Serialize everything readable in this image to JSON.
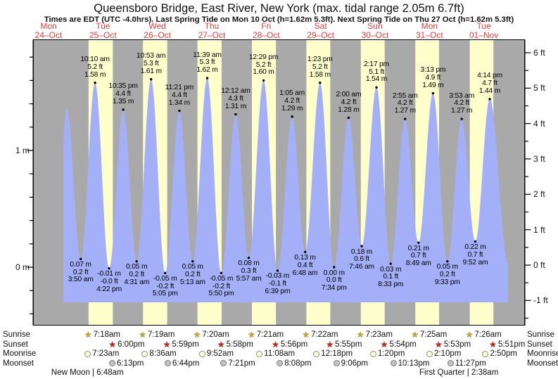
{
  "chart_data": {
    "type": "area",
    "title": "Queensboro Bridge, East River, New York (max. tidal range 2.05m 6.7ft)",
    "subtitle": "Times are EDT (UTC -4.0hrs). Last Spring Tide on Mon 10 Oct (h=1.62m 5.3ft). Next Spring Tide on Thu 27 Oct (h=1.62m 5.3ft)",
    "days": [
      {
        "dow": "Mon",
        "date": "24–Oct"
      },
      {
        "dow": "Tue",
        "date": "25–Oct"
      },
      {
        "dow": "Wed",
        "date": "26–Oct"
      },
      {
        "dow": "Thu",
        "date": "27–Oct"
      },
      {
        "dow": "Fri",
        "date": "28–Oct"
      },
      {
        "dow": "Sat",
        "date": "29–Oct"
      },
      {
        "dow": "Sun",
        "date": "30–Oct"
      },
      {
        "dow": "Mon",
        "date": "31–Oct"
      },
      {
        "dow": "Tue",
        "date": "01–Nov"
      }
    ],
    "y_axis_left": [
      {
        "value_m": 1,
        "label": "1 m"
      },
      {
        "value_m": 0,
        "label": "0 m"
      }
    ],
    "y_axis_right": [
      {
        "value_ft": 6,
        "label": "6 ft"
      },
      {
        "value_ft": 5,
        "label": "5 ft"
      },
      {
        "value_ft": 4,
        "label": "4 ft"
      },
      {
        "value_ft": 3,
        "label": "3 ft"
      },
      {
        "value_ft": 2,
        "label": "2 ft"
      },
      {
        "value_ft": 1,
        "label": "1 ft"
      },
      {
        "value_ft": 0,
        "label": "0 ft"
      },
      {
        "value_ft": -1,
        "label": "-1 ft"
      }
    ],
    "extremes": [
      {
        "day": 1,
        "time": "3:50 am",
        "ft": "0.2 ft",
        "m": "0.07 m",
        "kind": "low"
      },
      {
        "day": 1,
        "time": "10:10 am",
        "ft": "5.2 ft",
        "m": "1.58 m",
        "kind": "high"
      },
      {
        "day": 1,
        "time": "4:22 pm",
        "ft": "-0.0 ft",
        "m": "-0.01 m",
        "kind": "low"
      },
      {
        "day": 1,
        "time": "10:35 pm",
        "ft": "4.4 ft",
        "m": "1.35 m",
        "kind": "high"
      },
      {
        "day": 2,
        "time": "4:31 am",
        "ft": "0.2 ft",
        "m": "0.05 m",
        "kind": "low"
      },
      {
        "day": 2,
        "time": "10:53 am",
        "ft": "5.3 ft",
        "m": "1.61 m",
        "kind": "high"
      },
      {
        "day": 2,
        "time": "5:05 pm",
        "ft": "-0.2 ft",
        "m": "-0.05 m",
        "kind": "low"
      },
      {
        "day": 2,
        "time": "11:21 pm",
        "ft": "4.4 ft",
        "m": "1.34 m",
        "kind": "high"
      },
      {
        "day": 3,
        "time": "5:13 am",
        "ft": "0.2 ft",
        "m": "0.05 m",
        "kind": "low"
      },
      {
        "day": 3,
        "time": "11:39 am",
        "ft": "5.3 ft",
        "m": "1.62 m",
        "kind": "high"
      },
      {
        "day": 3,
        "time": "5:50 pm",
        "ft": "-0.2 ft",
        "m": "-0.05 m",
        "kind": "low"
      },
      {
        "day": 4,
        "time": "12:12 am",
        "ft": "4.3 ft",
        "m": "1.31 m",
        "kind": "high"
      },
      {
        "day": 4,
        "time": "5:57 am",
        "ft": "0.3 ft",
        "m": "0.08 m",
        "kind": "low"
      },
      {
        "day": 4,
        "time": "12:29 pm",
        "ft": "5.2 ft",
        "m": "1.60 m",
        "kind": "high"
      },
      {
        "day": 4,
        "time": "6:39 pm",
        "ft": "-0.1 ft",
        "m": "-0.03 m",
        "kind": "low"
      },
      {
        "day": 5,
        "time": "1:05 am",
        "ft": "4.2 ft",
        "m": "1.29 m",
        "kind": "high"
      },
      {
        "day": 5,
        "time": "6:48 am",
        "ft": "0.4 ft",
        "m": "0.13 m",
        "kind": "low"
      },
      {
        "day": 5,
        "time": "1:23 pm",
        "ft": "5.2 ft",
        "m": "1.58 m",
        "kind": "high"
      },
      {
        "day": 5,
        "time": "7:34 pm",
        "ft": "0.0 ft",
        "m": "0.00 m",
        "kind": "low"
      },
      {
        "day": 6,
        "time": "2:00 am",
        "ft": "4.2 ft",
        "m": "1.28 m",
        "kind": "high"
      },
      {
        "day": 6,
        "time": "7:46 am",
        "ft": "0.6 ft",
        "m": "0.18 m",
        "kind": "low"
      },
      {
        "day": 6,
        "time": "2:17 pm",
        "ft": "5.1 ft",
        "m": "1.54 m",
        "kind": "high"
      },
      {
        "day": 6,
        "time": "8:33 pm",
        "ft": "0.1 ft",
        "m": "0.03 m",
        "kind": "low"
      },
      {
        "day": 7,
        "time": "2:55 am",
        "ft": "4.2 ft",
        "m": "1.27 m",
        "kind": "high"
      },
      {
        "day": 7,
        "time": "8:49 am",
        "ft": "0.7 ft",
        "m": "0.21 m",
        "kind": "low"
      },
      {
        "day": 7,
        "time": "3:13 pm",
        "ft": "4.9 ft",
        "m": "1.49 m",
        "kind": "high"
      },
      {
        "day": 7,
        "time": "9:33 pm",
        "ft": "0.2 ft",
        "m": "0.05 m",
        "kind": "low"
      },
      {
        "day": 8,
        "time": "3:53 am",
        "ft": "4.2 ft",
        "m": "1.27 m",
        "kind": "high"
      },
      {
        "day": 8,
        "time": "9:52 am",
        "ft": "0.7 ft",
        "m": "0.22 m",
        "kind": "low"
      },
      {
        "day": 8,
        "time": "4:14 pm",
        "ft": "4.7 ft",
        "m": "1.44 m",
        "kind": "high"
      }
    ],
    "curve_shape_anchors": [
      {
        "day": 0,
        "hours": 16.9,
        "height_m": 0.0
      },
      {
        "day": 0,
        "hours": 21.75,
        "height_m": 1.36
      },
      {
        "day": 8,
        "hours": 24.4,
        "height_m": 0.03
      }
    ]
  },
  "astro": {
    "row_labels": {
      "sunrise": "Sunrise",
      "sunset": "Sunset",
      "moonrise": "Moonrise",
      "moonset": "Moonset"
    },
    "sunrise": [
      {
        "day": 1,
        "time": "7:18am"
      },
      {
        "day": 2,
        "time": "7:19am"
      },
      {
        "day": 3,
        "time": "7:20am"
      },
      {
        "day": 4,
        "time": "7:21am"
      },
      {
        "day": 5,
        "time": "7:22am"
      },
      {
        "day": 6,
        "time": "7:23am"
      },
      {
        "day": 7,
        "time": "7:25am"
      },
      {
        "day": 8,
        "time": "7:26am"
      }
    ],
    "sunset": [
      {
        "day": 1,
        "time": "6:00pm"
      },
      {
        "day": 2,
        "time": "5:59pm"
      },
      {
        "day": 3,
        "time": "5:58pm"
      },
      {
        "day": 4,
        "time": "5:56pm"
      },
      {
        "day": 5,
        "time": "5:55pm"
      },
      {
        "day": 6,
        "time": "5:54pm"
      },
      {
        "day": 7,
        "time": "5:53pm"
      },
      {
        "day": 8,
        "time": "5:51pm"
      }
    ],
    "moonrise": [
      {
        "day": 1,
        "time": "7:23am"
      },
      {
        "day": 2,
        "time": "8:36am"
      },
      {
        "day": 3,
        "time": "9:52am"
      },
      {
        "day": 4,
        "time": "11:08am"
      },
      {
        "day": 5,
        "time": "12:18pm"
      },
      {
        "day": 6,
        "time": "1:20pm"
      },
      {
        "day": 7,
        "time": "2:10pm"
      },
      {
        "day": 8,
        "time": "2:50pm"
      }
    ],
    "moonset": [
      {
        "day": 1,
        "time": "6:13pm"
      },
      {
        "day": 2,
        "time": "6:44pm"
      },
      {
        "day": 3,
        "time": "7:21pm"
      },
      {
        "day": 4,
        "time": "8:08pm"
      },
      {
        "day": 5,
        "time": "9:06pm"
      },
      {
        "day": 6,
        "time": "10:13pm"
      },
      {
        "day": 7,
        "time": "11:27pm"
      }
    ],
    "phases": [
      {
        "day": 1,
        "time": "6:48am",
        "text": "New Moon | 6:48am"
      },
      {
        "day": 8,
        "time": "2:38am",
        "text": "First Quarter | 2:38am"
      }
    ]
  },
  "colors": {
    "night_band": "#a9a9a9",
    "day_band": "#ffffcc",
    "tide_fill": "#a3aff7",
    "day_label_red": "#ee3b3b",
    "sunrise_star": "#c6a92c",
    "sunset_star": "#cf2010",
    "moonrise_fill": "#ffffd5",
    "moonrise_border": "#8a8a8a",
    "moonset_fill": "#c4c4c4",
    "moonset_border": "#777777",
    "axis": "#000000"
  }
}
